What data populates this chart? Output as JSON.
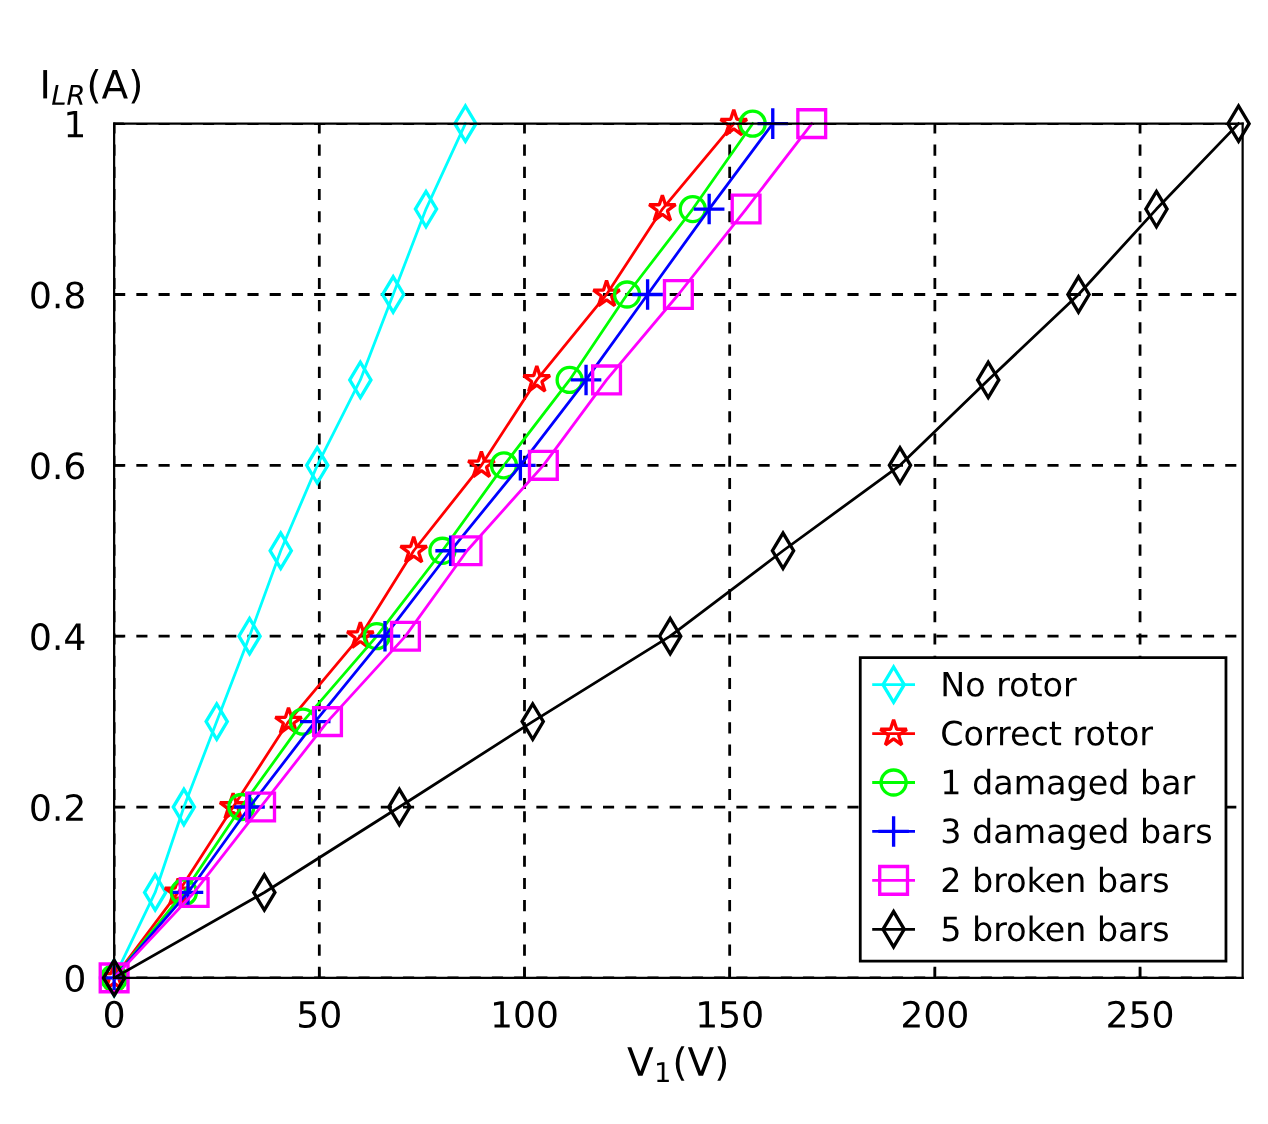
{
  "chart_data": {
    "type": "line",
    "xlabel": "V$_{1}$(V)",
    "ylabel": "I$_{LR}$(A)",
    "xlim": [
      0,
      275
    ],
    "xticks": [
      0,
      50,
      100,
      150,
      200,
      250
    ],
    "ylim": [
      0,
      1
    ],
    "yticks": [
      0,
      0.2,
      0.4,
      0.6,
      0.8,
      1
    ],
    "grid": true,
    "legend": "bottom right",
    "line_style": "solid",
    "series": [
      {
        "name": "No rotor",
        "color": "#00ffff",
        "marker": "diamond",
        "x": [
          0,
          10,
          17,
          25,
          33,
          40.6,
          49.5,
          60,
          68,
          76,
          85.6
        ],
        "values": [
          0,
          0.1,
          0.2,
          0.3,
          0.4,
          0.5,
          0.6,
          0.7,
          0.8,
          0.9,
          1
        ]
      },
      {
        "name": "Correct rotor",
        "color": "#ff0000",
        "marker": "star",
        "x": [
          0,
          15.6,
          29,
          42.5,
          60,
          73,
          89.5,
          103,
          120,
          133.6,
          151
        ],
        "values": [
          0,
          0.1,
          0.2,
          0.3,
          0.4,
          0.5,
          0.6,
          0.7,
          0.8,
          0.9,
          1
        ]
      },
      {
        "name": "1 damaged bar",
        "color": "#00ff00",
        "marker": "circle",
        "x": [
          0,
          17,
          31,
          46,
          64,
          80,
          95,
          111,
          125,
          141,
          155.6
        ],
        "values": [
          0,
          0.1,
          0.2,
          0.3,
          0.4,
          0.5,
          0.6,
          0.7,
          0.8,
          0.9,
          1
        ]
      },
      {
        "name": "3 damaged bars",
        "color": "#0000ff",
        "marker": "cross",
        "x": [
          0,
          18,
          33,
          49,
          66,
          82,
          99,
          115,
          130,
          145,
          160.5
        ],
        "values": [
          0,
          0.1,
          0.2,
          0.3,
          0.4,
          0.5,
          0.6,
          0.7,
          0.8,
          0.9,
          1
        ]
      },
      {
        "name": "2 broken bars",
        "color": "#ff00ff",
        "marker": "square",
        "x": [
          0,
          19.5,
          35.7,
          52,
          71,
          86,
          104.6,
          120,
          137.5,
          154,
          170
        ],
        "values": [
          0,
          0.1,
          0.2,
          0.3,
          0.4,
          0.5,
          0.6,
          0.7,
          0.8,
          0.9,
          1
        ]
      },
      {
        "name": "5 broken bars",
        "color": "#000000",
        "marker": "diamond",
        "x": [
          0,
          36.6,
          69.5,
          102,
          135.5,
          163,
          191.5,
          213,
          235,
          254,
          274
        ],
        "values": [
          0,
          0.1,
          0.2,
          0.3,
          0.4,
          0.5,
          0.6,
          0.7,
          0.8,
          0.9,
          1
        ]
      }
    ]
  }
}
